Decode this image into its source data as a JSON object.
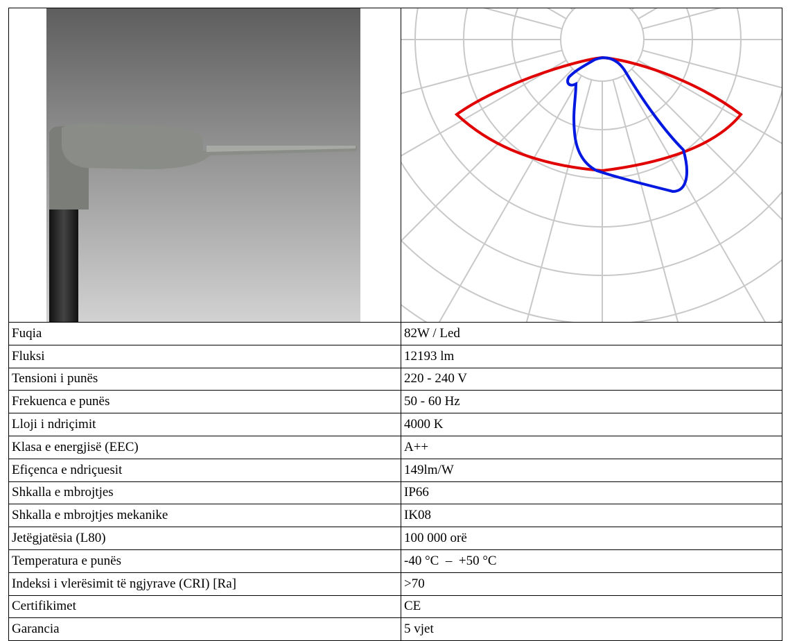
{
  "table": {
    "rows": [
      [
        "Fuqia",
        "82W / Led"
      ],
      [
        "Fluksi",
        "12193 lm"
      ],
      [
        "Tensioni i punës",
        "220 - 240 V"
      ],
      [
        "Frekuenca e punës",
        "50 - 60 Hz"
      ],
      [
        "Lloji i ndriçimit",
        "4000 K"
      ],
      [
        "Klasa e energjisë (EEC)",
        "A++"
      ],
      [
        "Efiçenca e ndriçuesit",
        "149lm/W"
      ],
      [
        "Shkalla e mbrojtjes",
        "IP66"
      ],
      [
        "Shkalla e mbrojtjes mekanike",
        "IK08"
      ],
      [
        "Jetëgjatësia (L80)",
        "100 000 orë"
      ],
      [
        "Temperatura e punës",
        "-40 °C  –  +50 °C"
      ],
      [
        "Indeksi i vlerësimit të ngjyrave (CRI) [Ra]",
        ">70"
      ],
      [
        "Certifikimet",
        "CE"
      ],
      [
        "Garancia",
        "5 vjet"
      ]
    ]
  }
}
